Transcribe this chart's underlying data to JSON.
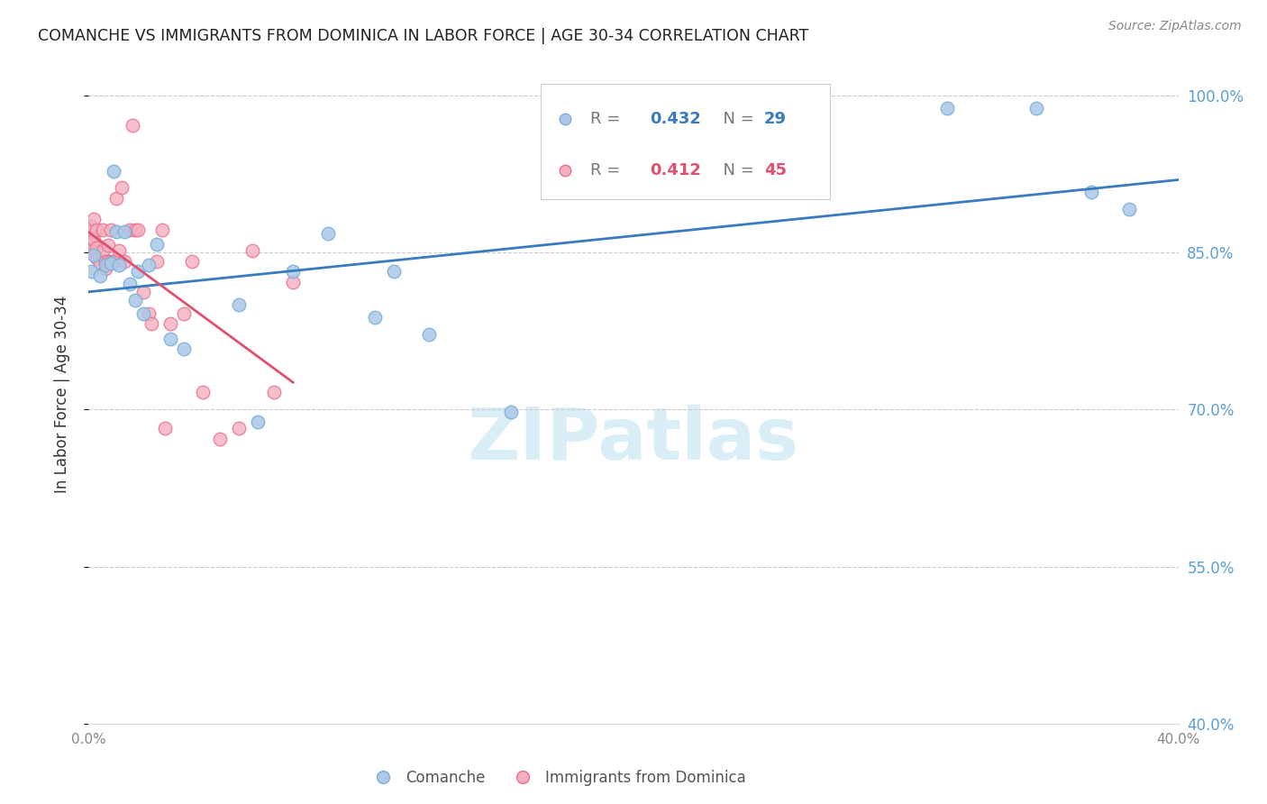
{
  "title": "COMANCHE VS IMMIGRANTS FROM DOMINICA IN LABOR FORCE | AGE 30-34 CORRELATION CHART",
  "source": "Source: ZipAtlas.com",
  "ylabel": "In Labor Force | Age 30-34",
  "xlim": [
    0.0,
    0.4
  ],
  "ylim": [
    0.4,
    1.03
  ],
  "yticks": [
    0.4,
    0.55,
    0.7,
    0.85,
    1.0
  ],
  "xticks": [
    0.0,
    0.05,
    0.1,
    0.15,
    0.2,
    0.25,
    0.3,
    0.35,
    0.4
  ],
  "blue_color": "#aac8e8",
  "blue_edge": "#7aaed6",
  "pink_color": "#f5b0c0",
  "pink_edge": "#e87090",
  "blue_line_color": "#3a7abf",
  "pink_line_color": "#e05070",
  "axis_label_color": "#5a9fd4",
  "blue_R": "0.432",
  "blue_N": "29",
  "pink_R": "0.412",
  "pink_N": "45",
  "watermark": "ZIPatlas",
  "blue_x": [
    0.001,
    0.002,
    0.004,
    0.006,
    0.008,
    0.009,
    0.01,
    0.011,
    0.013,
    0.015,
    0.017,
    0.018,
    0.02,
    0.022,
    0.025,
    0.03,
    0.035,
    0.055,
    0.062,
    0.075,
    0.088,
    0.105,
    0.112,
    0.125,
    0.155,
    0.315,
    0.348,
    0.368,
    0.382
  ],
  "blue_y": [
    0.832,
    0.848,
    0.828,
    0.838,
    0.84,
    0.928,
    0.87,
    0.838,
    0.87,
    0.82,
    0.805,
    0.832,
    0.792,
    0.838,
    0.858,
    0.768,
    0.758,
    0.8,
    0.688,
    0.832,
    0.868,
    0.788,
    0.832,
    0.772,
    0.698,
    0.988,
    0.988,
    0.908,
    0.892
  ],
  "pink_x": [
    0.001,
    0.001,
    0.001,
    0.001,
    0.001,
    0.002,
    0.002,
    0.002,
    0.002,
    0.003,
    0.003,
    0.003,
    0.004,
    0.005,
    0.005,
    0.006,
    0.006,
    0.007,
    0.007,
    0.008,
    0.008,
    0.009,
    0.01,
    0.011,
    0.012,
    0.013,
    0.015,
    0.016,
    0.017,
    0.018,
    0.02,
    0.022,
    0.023,
    0.025,
    0.027,
    0.028,
    0.03,
    0.035,
    0.038,
    0.042,
    0.048,
    0.055,
    0.06,
    0.068,
    0.075
  ],
  "pink_y": [
    0.862,
    0.862,
    0.865,
    0.87,
    0.875,
    0.85,
    0.855,
    0.862,
    0.882,
    0.845,
    0.855,
    0.872,
    0.84,
    0.872,
    0.852,
    0.835,
    0.842,
    0.842,
    0.857,
    0.842,
    0.872,
    0.842,
    0.902,
    0.852,
    0.912,
    0.842,
    0.872,
    0.972,
    0.872,
    0.872,
    0.812,
    0.792,
    0.782,
    0.842,
    0.872,
    0.682,
    0.782,
    0.792,
    0.842,
    0.717,
    0.672,
    0.682,
    0.852,
    0.717,
    0.822
  ]
}
